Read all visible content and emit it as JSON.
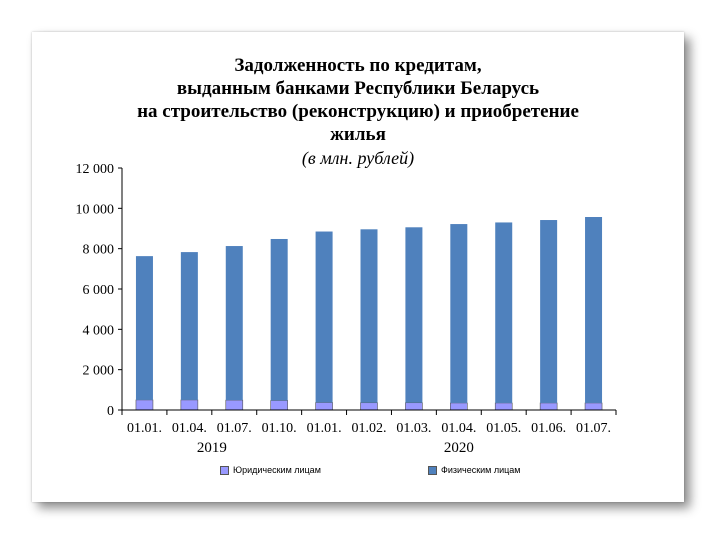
{
  "chart_data": {
    "type": "bar",
    "stacked": true,
    "title_lines": [
      "Задолженность по кредитам,",
      "выданным банками Республики Беларусь",
      "на строительство (реконструкцию) и приобретение",
      "жилья"
    ],
    "subtitle": "(в млн. рублей)",
    "categories": [
      "01.01.",
      "01.04.",
      "01.07.",
      "01.10.",
      "01.01.",
      "01.02.",
      "01.03.",
      "01.04.",
      "01.05.",
      "01.06.",
      "01.07."
    ],
    "year_labels": [
      {
        "label": "2019",
        "from": 0,
        "to": 3
      },
      {
        "label": "2020",
        "from": 4,
        "to": 10
      }
    ],
    "y_ticks": [
      "0",
      "2 000",
      "4 000",
      "6 000",
      "8 000",
      "10 000",
      "12 000"
    ],
    "ylim": [
      0,
      12000
    ],
    "series": [
      {
        "name": "Юридическим лицам",
        "color": "#9999ff",
        "values": [
          500,
          500,
          490,
          470,
          370,
          360,
          360,
          350,
          350,
          350,
          350
        ]
      },
      {
        "name": "Физическим лицам",
        "color": "#4f81bd",
        "values": [
          7130,
          7330,
          7640,
          8010,
          8480,
          8600,
          8700,
          8870,
          8950,
          9070,
          9220
        ]
      }
    ],
    "legend_position": "bottom"
  }
}
